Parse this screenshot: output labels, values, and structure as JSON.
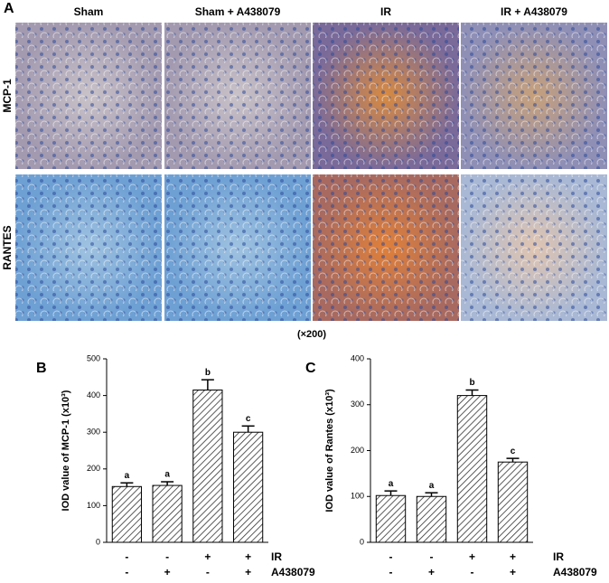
{
  "figure": {
    "panel_a_label": "A",
    "columns": [
      "Sham",
      "Sham + A438079",
      "IR",
      "IR + A438079"
    ],
    "rows": [
      "MCP-1",
      "RANTES"
    ],
    "magnification": "(×200)"
  },
  "chart_data": [
    {
      "type": "bar",
      "panel_label": "B",
      "y_label": "IOD value of MCP-1 (x10³)",
      "values": [
        152,
        155,
        415,
        300
      ],
      "errors": [
        10,
        10,
        28,
        17
      ],
      "significance": [
        "a",
        "a",
        "b",
        "c"
      ],
      "factors": [
        {
          "name": "IR",
          "levels": [
            "-",
            "-",
            "+",
            "+"
          ]
        },
        {
          "name": "A438079",
          "levels": [
            "-",
            "+",
            "-",
            "+"
          ]
        }
      ],
      "ylim": [
        0,
        500
      ],
      "yticks": [
        0,
        100,
        200,
        300,
        400,
        500
      ]
    },
    {
      "type": "bar",
      "panel_label": "C",
      "y_label": "IOD value of Rantes (x10³)",
      "values": [
        102,
        100,
        320,
        175
      ],
      "errors": [
        10,
        8,
        12,
        8
      ],
      "significance": [
        "a",
        "a",
        "b",
        "c"
      ],
      "factors": [
        {
          "name": "IR",
          "levels": [
            "-",
            "-",
            "+",
            "+"
          ]
        },
        {
          "name": "A438079",
          "levels": [
            "-",
            "+",
            "-",
            "+"
          ]
        }
      ],
      "ylim": [
        0,
        400
      ],
      "yticks": [
        0,
        100,
        200,
        300,
        400
      ]
    }
  ]
}
